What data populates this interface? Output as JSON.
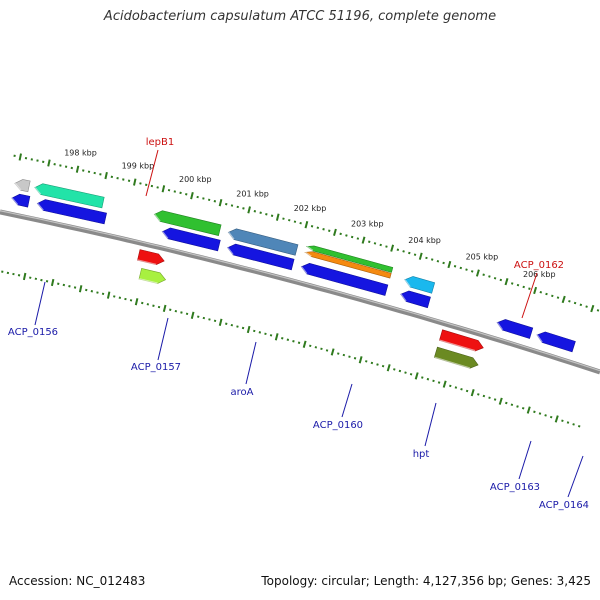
{
  "title": "Acidobacterium capsulatum ATCC 51196, complete genome",
  "footer": {
    "accession": "Accession: NC_012483",
    "summary": "Topology: circular; Length: 4,127,356 bp; Genes: 3,425"
  },
  "colors": {
    "backbone": "#8a8a8a",
    "tick": "#2f7a1e",
    "label_forward": "#cc1111",
    "label_reverse": "#1a1aa8"
  },
  "scale_labels": [
    "198 kbp",
    "199 kbp",
    "200 kbp",
    "201 kbp",
    "202 kbp",
    "203 kbp",
    "204 kbp",
    "205 kbp",
    "206 kbp"
  ],
  "features": [
    {
      "name": "",
      "strand": "reverse",
      "track": 1,
      "color": "#1515e0",
      "start_kbp": 197.0,
      "end_kbp": 197.3
    },
    {
      "name": "",
      "strand": "reverse",
      "track": 2,
      "color": "#c8c8c8",
      "start_kbp": 197.0,
      "end_kbp": 197.25
    },
    {
      "name": "",
      "strand": "reverse",
      "track": 1,
      "color": "#1515e0",
      "start_kbp": 197.45,
      "end_kbp": 198.65
    },
    {
      "name": "ACP_0156",
      "strand": "reverse",
      "track": 2,
      "color": "#22e3a8",
      "start_kbp": 197.35,
      "end_kbp": 198.55
    },
    {
      "name": "lepB1",
      "strand": "forward",
      "track": 2,
      "color": "#a8f040",
      "start_kbp": 199.45,
      "end_kbp": 199.9
    },
    {
      "name": "",
      "strand": "forward",
      "track": 1,
      "color": "#ee1111",
      "start_kbp": 199.35,
      "end_kbp": 199.8
    },
    {
      "name": "",
      "strand": "reverse",
      "track": 1,
      "color": "#1515e0",
      "start_kbp": 199.65,
      "end_kbp": 200.65
    },
    {
      "name": "ACP_0157",
      "strand": "reverse",
      "track": 2,
      "color": "#30c030",
      "start_kbp": 199.45,
      "end_kbp": 200.6
    },
    {
      "name": "",
      "strand": "reverse",
      "track": 1,
      "color": "#1515e0",
      "start_kbp": 200.8,
      "end_kbp": 201.95
    },
    {
      "name": "aroA",
      "strand": "reverse",
      "track": 2,
      "color": "#4f86b8",
      "start_kbp": 200.75,
      "end_kbp": 201.95
    },
    {
      "name": "",
      "strand": "reverse",
      "track": 1,
      "color": "#1515e0",
      "start_kbp": 202.1,
      "end_kbp": 203.6
    },
    {
      "name": "",
      "strand": "reverse",
      "track": 2,
      "color": "#f58a10",
      "start_kbp": 202.1,
      "end_kbp": 203.6
    },
    {
      "name": "ACP_0160",
      "strand": "reverse",
      "track": 3,
      "color": "#30c030",
      "start_kbp": 202.1,
      "end_kbp": 203.6
    },
    {
      "name": "",
      "strand": "reverse",
      "track": 1,
      "color": "#1515e0",
      "start_kbp": 203.85,
      "end_kbp": 204.35
    },
    {
      "name": "hpt",
      "strand": "reverse",
      "track": 2,
      "color": "#1ab8ee",
      "start_kbp": 203.85,
      "end_kbp": 204.35
    },
    {
      "name": "ACP_0162",
      "strand": "forward",
      "track": 2,
      "color": "#6b8a22",
      "start_kbp": 204.7,
      "end_kbp": 205.45
    },
    {
      "name": "",
      "strand": "forward",
      "track": 1,
      "color": "#ee1111",
      "start_kbp": 204.7,
      "end_kbp": 205.45
    },
    {
      "name": "ACP_0163",
      "strand": "reverse",
      "track": 1,
      "color": "#1515e0",
      "start_kbp": 205.55,
      "end_kbp": 206.15
    },
    {
      "name": "ACP_0164",
      "strand": "reverse",
      "track": 1,
      "color": "#1515e0",
      "start_kbp": 206.25,
      "end_kbp": 206.9
    }
  ],
  "labels": [
    {
      "name": "lepB1",
      "strand": "forward"
    },
    {
      "name": "ACP_0162",
      "strand": "forward"
    },
    {
      "name": "ACP_0156",
      "strand": "reverse"
    },
    {
      "name": "ACP_0157",
      "strand": "reverse"
    },
    {
      "name": "aroA",
      "strand": "reverse"
    },
    {
      "name": "ACP_0160",
      "strand": "reverse"
    },
    {
      "name": "hpt",
      "strand": "reverse"
    },
    {
      "name": "ACP_0163",
      "strand": "reverse"
    },
    {
      "name": "ACP_0164",
      "strand": "reverse"
    }
  ]
}
